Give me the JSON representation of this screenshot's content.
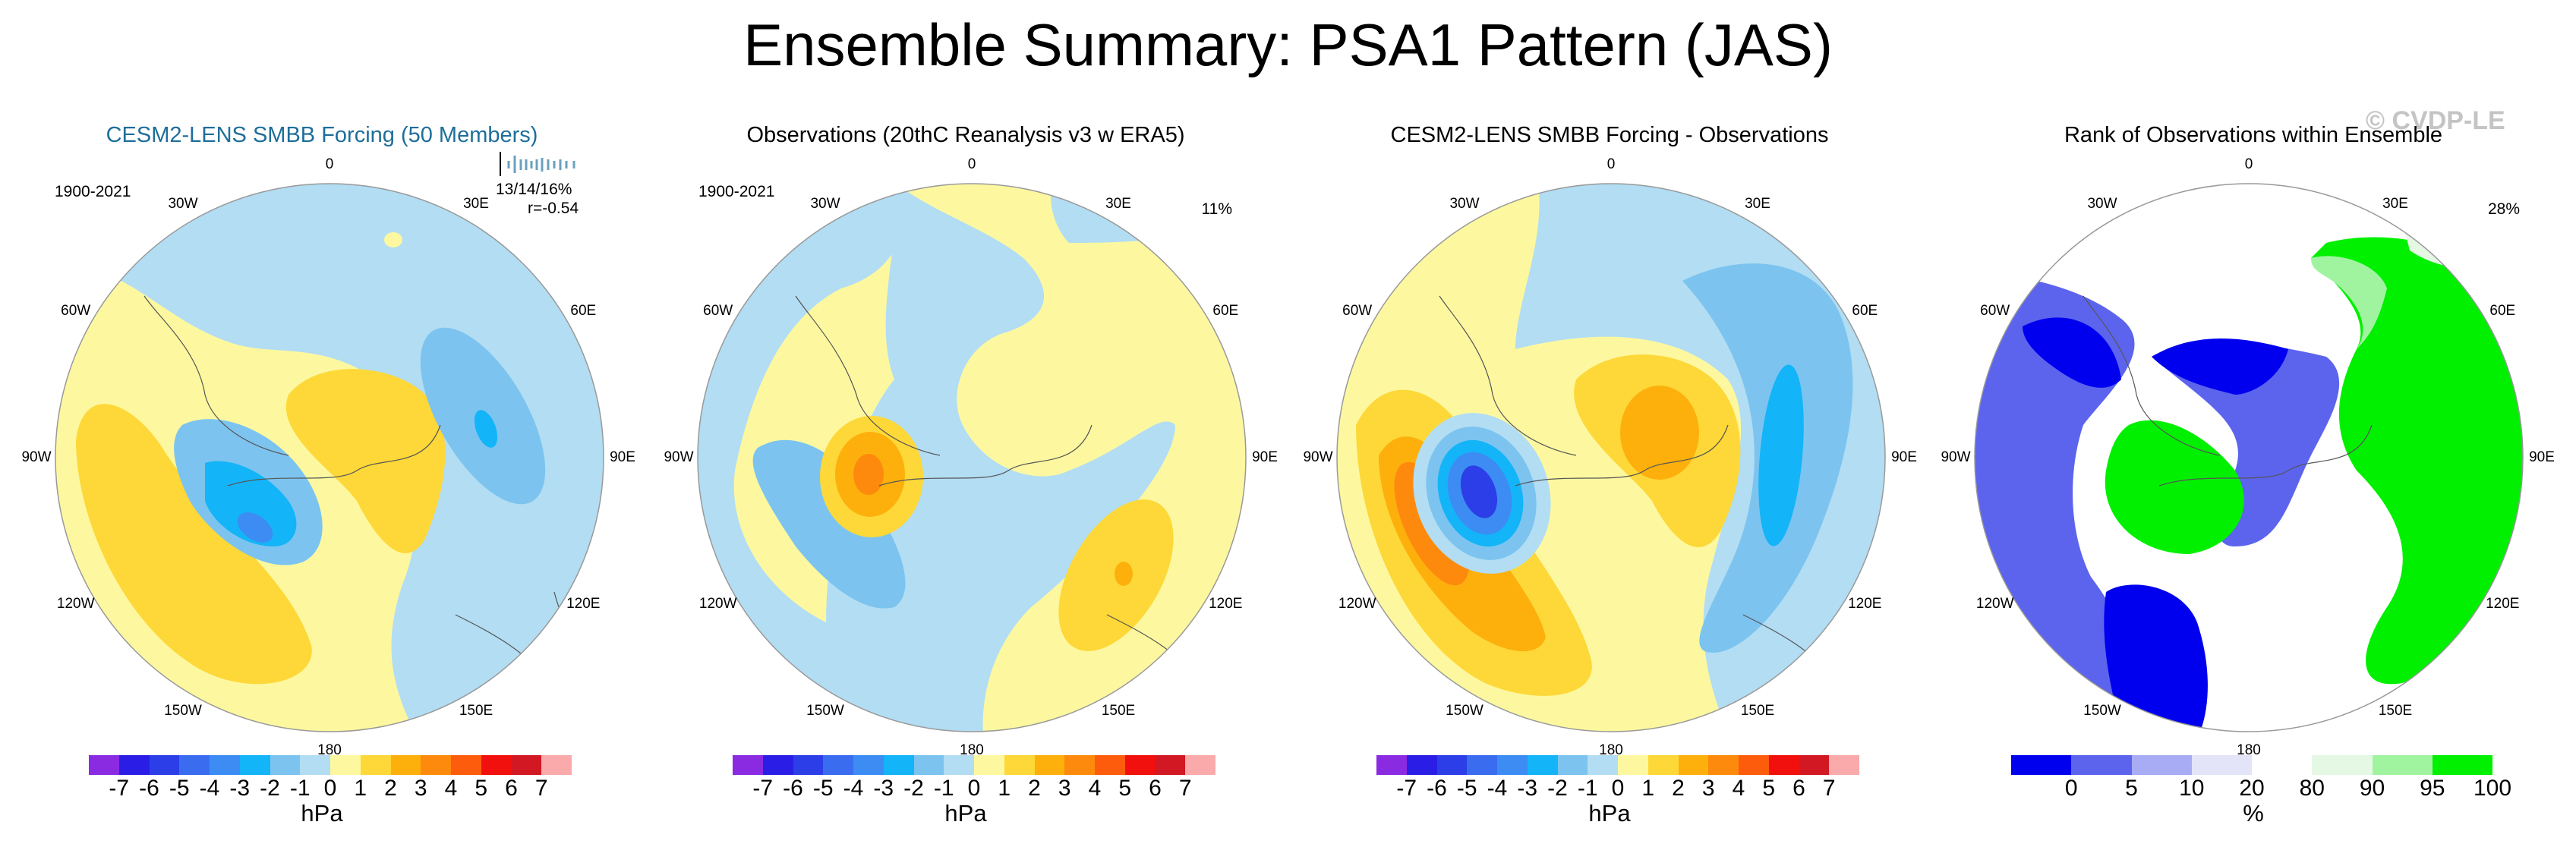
{
  "figure": {
    "title": "Ensemble Summary: PSA1 Pattern (JAS)",
    "watermark": "© CVDP-LE"
  },
  "lon_labels": [
    "0",
    "30E",
    "60E",
    "90E",
    "120E",
    "150E",
    "180",
    "150W",
    "120W",
    "90W",
    "60W",
    "30W"
  ],
  "chart_data": [
    {
      "type": "heatmap",
      "title": "CESM2-LENS SMBB Forcing (50 Members)",
      "period": "1900-2021",
      "stats_line1": "13/14/16%",
      "stats_line2": "r=-0.54",
      "projection": "south polar stereographic",
      "colorbar": {
        "levels": [
          "-7",
          "-6",
          "-5",
          "-4",
          "-3",
          "-2",
          "-1",
          "0",
          "1",
          "2",
          "3",
          "4",
          "5",
          "6",
          "7"
        ],
        "colors": [
          "#8a2be2",
          "#2a1ee6",
          "#2c3ee8",
          "#3a6cf0",
          "#3c8cf4",
          "#14b4f8",
          "#7cc4ef",
          "#b2ddf3",
          "#fdf8a0",
          "#fdd838",
          "#fdb00c",
          "#fd8a0c",
          "#fd5c0c",
          "#f2100e",
          "#d21822",
          "#faaaaa"
        ],
        "units": "hPa"
      },
      "features": [
        {
          "name": "negative center (South Pacific)",
          "min_hpa": -5
        },
        {
          "name": "positive center (Antarctica)",
          "max_hpa": 2
        },
        {
          "name": "negative center (Indian Ocean)",
          "min_hpa": -3
        },
        {
          "name": "positive band (Pacific sector)",
          "max_hpa": 2
        }
      ]
    },
    {
      "type": "heatmap",
      "title": "Observations (20thC Reanalysis v3 w ERA5)",
      "period": "1900-2021",
      "pct_label": "11%",
      "projection": "south polar stereographic",
      "colorbar": {
        "levels": [
          "-7",
          "-6",
          "-5",
          "-4",
          "-3",
          "-2",
          "-1",
          "0",
          "1",
          "2",
          "3",
          "4",
          "5",
          "6",
          "7"
        ],
        "units": "hPa"
      },
      "features": [
        {
          "name": "positive center (Amundsen Sea)",
          "max_hpa": 4
        },
        {
          "name": "negative band (Pacific)",
          "min_hpa": -2
        },
        {
          "name": "positive center (Australia)",
          "max_hpa": 3
        }
      ]
    },
    {
      "type": "heatmap",
      "title": "CESM2-LENS SMBB Forcing - Observations",
      "projection": "south polar stereographic",
      "colorbar": {
        "levels": [
          "-7",
          "-6",
          "-5",
          "-4",
          "-3",
          "-2",
          "-1",
          "0",
          "1",
          "2",
          "3",
          "4",
          "5",
          "6",
          "7"
        ],
        "units": "hPa"
      },
      "features": [
        {
          "name": "negative center (Bellingshausen)",
          "min_hpa": -6
        },
        {
          "name": "positive center (Antarctica)",
          "max_hpa": 3
        },
        {
          "name": "negative band (Indian Ocean)",
          "min_hpa": -3
        },
        {
          "name": "positive band (Pacific)",
          "max_hpa": 4
        }
      ]
    },
    {
      "type": "heatmap",
      "title": "Rank of Observations within Ensemble",
      "pct_label": "28%",
      "projection": "south polar stereographic",
      "colorbar": {
        "levels": [
          "0",
          "5",
          "10",
          "20",
          "80",
          "90",
          "95",
          "100"
        ],
        "colors": [
          "#0000ee",
          "#5c64ee",
          "#a8acf4",
          "#e4e4f8",
          "#ffffff",
          "#e4f8e4",
          "#a0f4a0",
          "#00f000"
        ],
        "units": "%"
      }
    }
  ]
}
